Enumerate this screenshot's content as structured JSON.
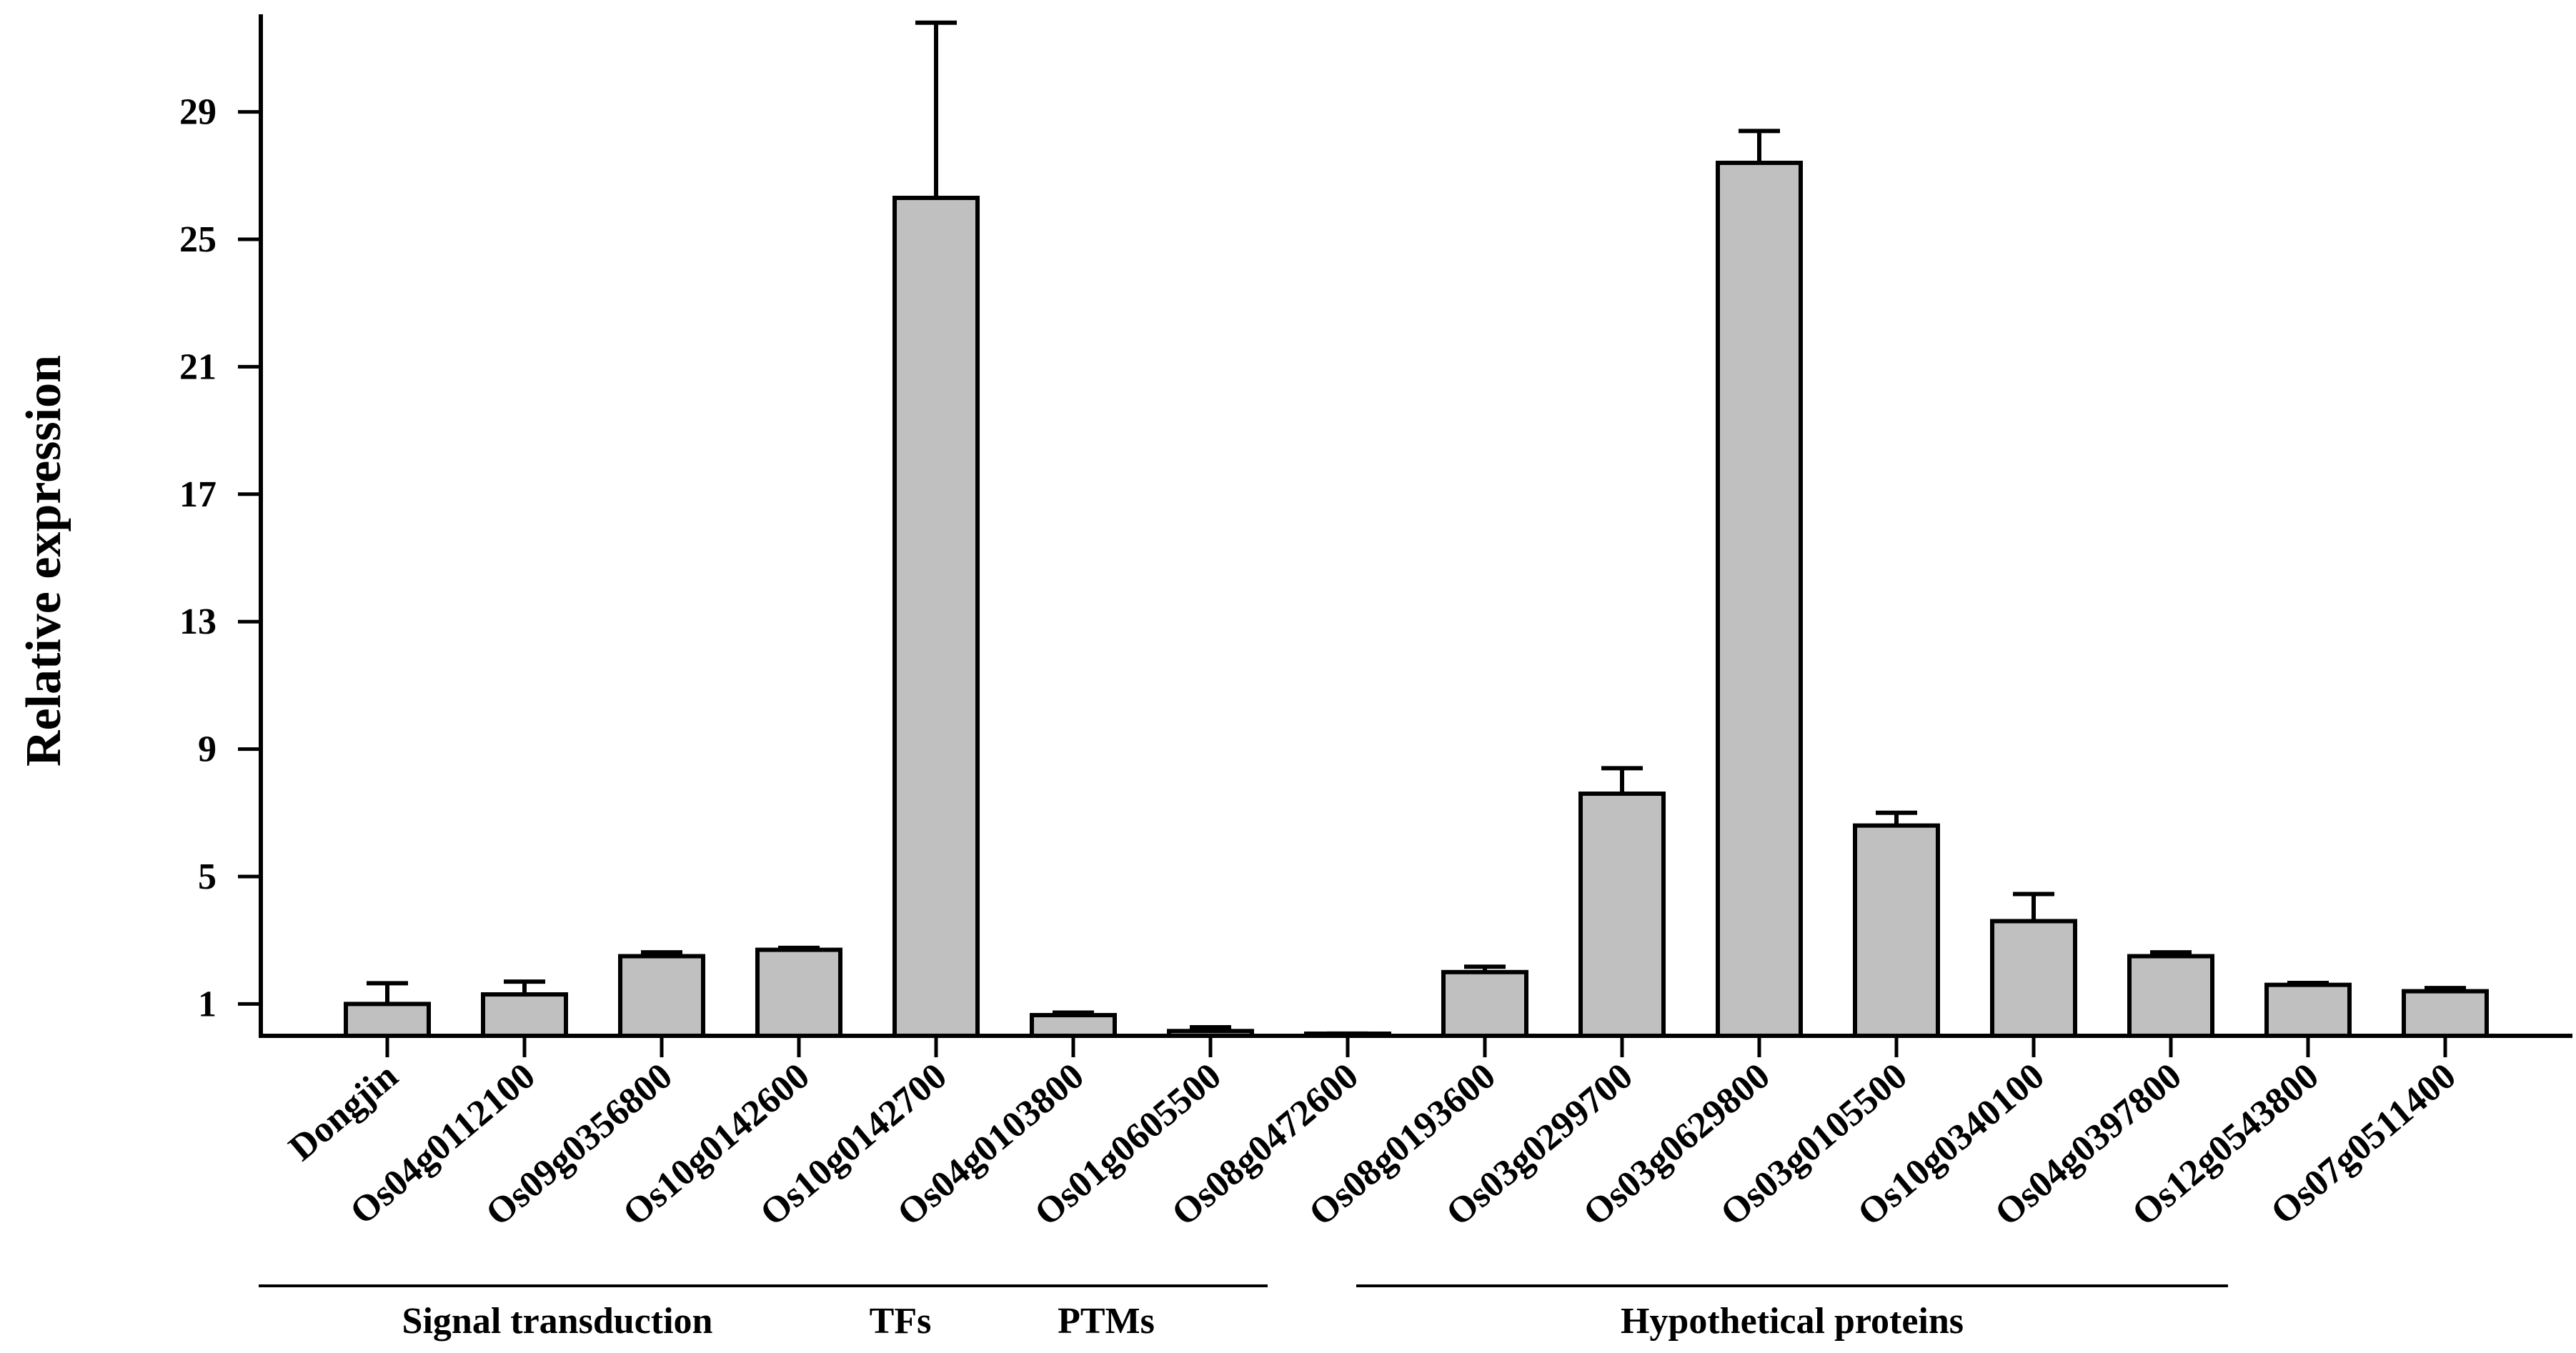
{
  "chart_data": {
    "type": "bar",
    "title": "",
    "xlabel": "",
    "ylabel": "Relative expression",
    "ylim": [
      0,
      32
    ],
    "yticks": [
      1,
      5,
      9,
      13,
      17,
      21,
      25,
      29
    ],
    "grid": false,
    "bar_color": "#c0c0c0",
    "categories": [
      "Dongjin",
      "Os04g0112100",
      "Os09g0356800",
      "Os10g0142600",
      "Os10g0142700",
      "Os04g0103800",
      "Os01g0605500",
      "Os08g0472600",
      "Os08g0193600",
      "Os03g0299700",
      "Os03g0629800",
      "Os03g0105500",
      "Os10g0340100",
      "Os04g0397800",
      "Os12g0543800",
      "Os07g0511400"
    ],
    "values": [
      1.0,
      1.3,
      2.5,
      2.7,
      26.3,
      0.65,
      0.15,
      0.05,
      2.0,
      7.6,
      27.4,
      6.6,
      3.6,
      2.5,
      1.6,
      1.4
    ],
    "errors": [
      0.65,
      0.4,
      0.12,
      0.06,
      5.5,
      0.08,
      0.12,
      0.02,
      0.17,
      0.8,
      1.0,
      0.4,
      0.85,
      0.12,
      0.06,
      0.1
    ],
    "groups": [
      {
        "label": "Signal transduction",
        "start": 0,
        "end": 3
      },
      {
        "label": "TFs",
        "start": 4,
        "end": 4
      },
      {
        "label": "PTMs",
        "start": 5,
        "end": 6
      },
      {
        "label": "Hypothetical proteins",
        "start": 8,
        "end": 13
      }
    ]
  }
}
